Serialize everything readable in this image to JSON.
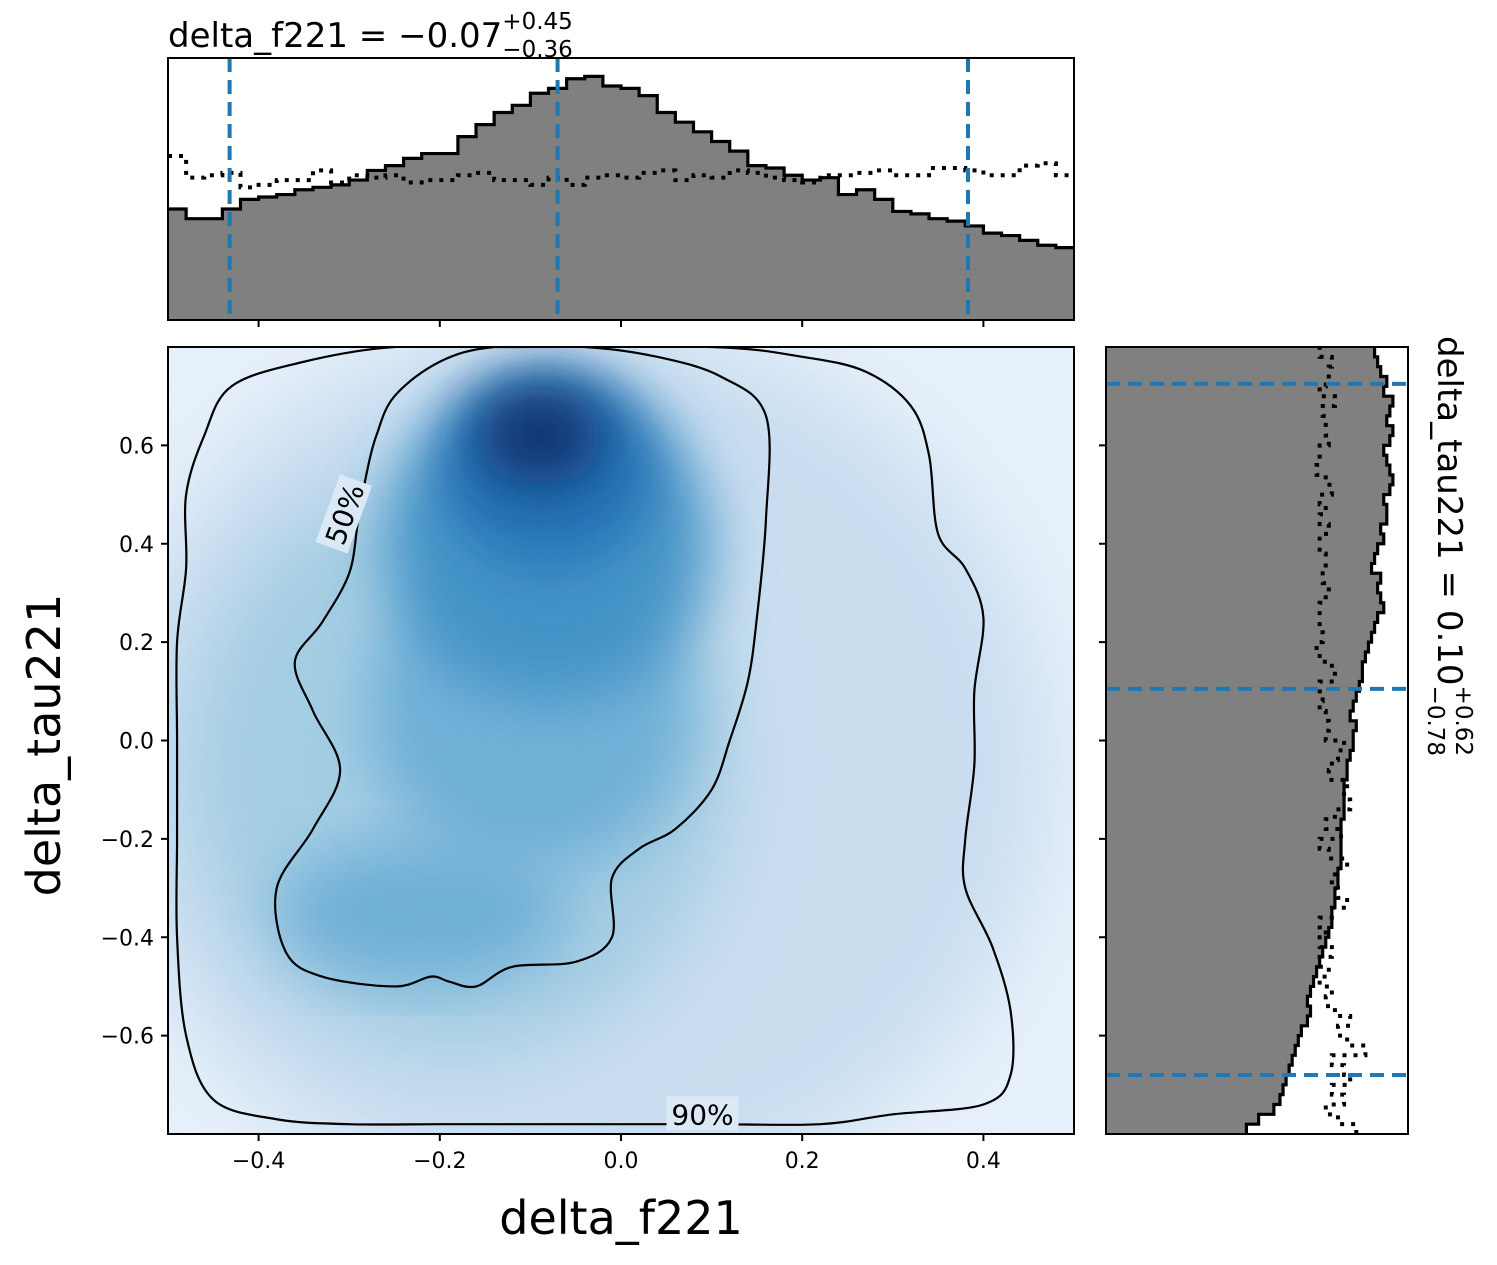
{
  "chart_data": [
    {
      "type": "heatmap",
      "panel": "joint",
      "xlabel": "delta_f221",
      "ylabel": "delta_tau221",
      "xlim": [
        -0.5,
        0.5
      ],
      "ylim": [
        -0.8,
        0.8
      ],
      "x_ticks": [
        -0.4,
        -0.2,
        0.0,
        0.2,
        0.4
      ],
      "x_tick_labels": [
        "−0.4",
        "−0.2",
        "0.0",
        "0.2",
        "0.4"
      ],
      "y_ticks": [
        -0.6,
        -0.4,
        -0.2,
        0.0,
        0.2,
        0.4,
        0.6
      ],
      "y_tick_labels": [
        "−0.6",
        "−0.4",
        "−0.2",
        "0.0",
        "0.2",
        "0.4",
        "0.6"
      ],
      "colormap": "Blues",
      "density_peak": {
        "x": -0.09,
        "y": 0.6
      },
      "contours": [
        {
          "label": "50%",
          "points": [
            [
              -0.14,
              0.8
            ],
            [
              -0.04,
              0.8
            ],
            [
              0.04,
              0.78
            ],
            [
              0.11,
              0.74
            ],
            [
              0.16,
              0.66
            ],
            [
              0.16,
              0.45
            ],
            [
              0.15,
              0.25
            ],
            [
              0.14,
              0.12
            ],
            [
              0.12,
              0.0
            ],
            [
              0.1,
              -0.1
            ],
            [
              0.06,
              -0.18
            ],
            [
              0.02,
              -0.22
            ],
            [
              -0.01,
              -0.28
            ],
            [
              -0.01,
              -0.4
            ],
            [
              -0.05,
              -0.45
            ],
            [
              -0.12,
              -0.46
            ],
            [
              -0.16,
              -0.5
            ],
            [
              -0.19,
              -0.49
            ],
            [
              -0.21,
              -0.48
            ],
            [
              -0.25,
              -0.5
            ],
            [
              -0.33,
              -0.48
            ],
            [
              -0.37,
              -0.43
            ],
            [
              -0.38,
              -0.3
            ],
            [
              -0.34,
              -0.18
            ],
            [
              -0.31,
              -0.06
            ],
            [
              -0.34,
              0.06
            ],
            [
              -0.36,
              0.16
            ],
            [
              -0.33,
              0.24
            ],
            [
              -0.3,
              0.34
            ],
            [
              -0.29,
              0.45
            ],
            [
              -0.28,
              0.55
            ],
            [
              -0.27,
              0.62
            ],
            [
              -0.25,
              0.7
            ],
            [
              -0.2,
              0.77
            ]
          ]
        },
        {
          "label": "90%",
          "points": [
            [
              -0.12,
              0.8
            ],
            [
              0.1,
              0.8
            ],
            [
              0.2,
              0.78
            ],
            [
              0.27,
              0.75
            ],
            [
              0.32,
              0.68
            ],
            [
              0.34,
              0.58
            ],
            [
              0.35,
              0.42
            ],
            [
              0.38,
              0.35
            ],
            [
              0.4,
              0.25
            ],
            [
              0.39,
              0.1
            ],
            [
              0.39,
              -0.05
            ],
            [
              0.38,
              -0.2
            ],
            [
              0.38,
              -0.3
            ],
            [
              0.41,
              -0.42
            ],
            [
              0.43,
              -0.55
            ],
            [
              0.43,
              -0.68
            ],
            [
              0.4,
              -0.74
            ],
            [
              0.3,
              -0.76
            ],
            [
              0.22,
              -0.78
            ],
            [
              0.1,
              -0.78
            ],
            [
              0.0,
              -0.78
            ],
            [
              -0.1,
              -0.78
            ],
            [
              -0.2,
              -0.78
            ],
            [
              -0.3,
              -0.78
            ],
            [
              -0.38,
              -0.77
            ],
            [
              -0.45,
              -0.73
            ],
            [
              -0.48,
              -0.6
            ],
            [
              -0.49,
              -0.4
            ],
            [
              -0.49,
              -0.2
            ],
            [
              -0.49,
              0.0
            ],
            [
              -0.49,
              0.2
            ],
            [
              -0.48,
              0.35
            ],
            [
              -0.48,
              0.5
            ],
            [
              -0.46,
              0.62
            ],
            [
              -0.43,
              0.72
            ],
            [
              -0.35,
              0.77
            ],
            [
              -0.25,
              0.8
            ]
          ]
        }
      ]
    },
    {
      "type": "bar",
      "panel": "top-marginal",
      "title_param": "delta_f221",
      "title_value": "−0.07",
      "title_upper": "+0.45",
      "title_lower": "−0.36",
      "xlim": [
        -0.5,
        0.5
      ],
      "quantile_lines": [
        -0.432,
        -0.07,
        0.383
      ],
      "bin_edges_start": -0.5,
      "bin_width": 0.02,
      "posterior": [
        0.46,
        0.42,
        0.42,
        0.46,
        0.5,
        0.51,
        0.52,
        0.54,
        0.55,
        0.56,
        0.58,
        0.62,
        0.64,
        0.67,
        0.69,
        0.69,
        0.76,
        0.81,
        0.86,
        0.89,
        0.94,
        0.96,
        1.0,
        1.01,
        0.97,
        0.96,
        0.93,
        0.86,
        0.82,
        0.78,
        0.74,
        0.7,
        0.64,
        0.63,
        0.6,
        0.58,
        0.59,
        0.52,
        0.54,
        0.5,
        0.45,
        0.44,
        0.42,
        0.41,
        0.39,
        0.36,
        0.35,
        0.33,
        0.31,
        0.3
      ],
      "prior": [
        0.68,
        0.59,
        0.6,
        0.61,
        0.55,
        0.56,
        0.58,
        0.58,
        0.62,
        0.57,
        0.6,
        0.59,
        0.6,
        0.57,
        0.58,
        0.58,
        0.6,
        0.61,
        0.58,
        0.58,
        0.56,
        0.59,
        0.56,
        0.59,
        0.6,
        0.59,
        0.61,
        0.62,
        0.58,
        0.6,
        0.59,
        0.62,
        0.61,
        0.59,
        0.58,
        0.57,
        0.6,
        0.6,
        0.61,
        0.62,
        0.6,
        0.6,
        0.63,
        0.63,
        0.62,
        0.6,
        0.6,
        0.64,
        0.65,
        0.6
      ]
    },
    {
      "type": "bar",
      "panel": "right-marginal",
      "orientation": "horizontal",
      "title_param": "delta_tau221",
      "title_value": "0.10",
      "title_upper": "+0.62",
      "title_lower": "−0.78",
      "ylim": [
        -0.8,
        0.8
      ],
      "quantile_lines": [
        -0.68,
        0.105,
        0.725
      ],
      "bin_edges_start": -0.8,
      "bin_width": 0.02,
      "posterior": [
        0.46,
        0.5,
        0.55,
        0.57,
        0.58,
        0.59,
        0.6,
        0.61,
        0.62,
        0.63,
        0.64,
        0.66,
        0.67,
        0.66,
        0.67,
        0.68,
        0.69,
        0.7,
        0.71,
        0.72,
        0.73,
        0.74,
        0.74,
        0.75,
        0.75,
        0.76,
        0.76,
        0.77,
        0.77,
        0.77,
        0.77,
        0.77,
        0.78,
        0.78,
        0.78,
        0.78,
        0.79,
        0.79,
        0.8,
        0.81,
        0.81,
        0.82,
        0.8,
        0.81,
        0.82,
        0.83,
        0.84,
        0.84,
        0.85,
        0.86,
        0.87,
        0.88,
        0.89,
        0.91,
        0.9,
        0.89,
        0.9,
        0.87,
        0.88,
        0.89,
        0.91,
        0.9,
        0.92,
        0.92,
        0.91,
        0.93,
        0.94,
        0.93,
        0.92,
        0.91,
        0.93,
        0.94,
        0.92,
        0.93,
        0.94,
        0.91,
        0.92,
        0.9,
        0.89,
        0.88
      ],
      "prior": [
        0.82,
        0.76,
        0.72,
        0.78,
        0.74,
        0.8,
        0.78,
        0.74,
        0.85,
        0.79,
        0.76,
        0.8,
        0.75,
        0.72,
        0.74,
        0.7,
        0.73,
        0.7,
        0.74,
        0.7,
        0.72,
        0.7,
        0.74,
        0.79,
        0.76,
        0.74,
        0.75,
        0.79,
        0.73,
        0.7,
        0.77,
        0.72,
        0.75,
        0.8,
        0.78,
        0.79,
        0.73,
        0.74,
        0.76,
        0.78,
        0.72,
        0.73,
        0.72,
        0.7,
        0.71,
        0.7,
        0.75,
        0.74,
        0.7,
        0.69,
        0.71,
        0.7,
        0.7,
        0.7,
        0.72,
        0.73,
        0.71,
        0.72,
        0.72,
        0.7,
        0.7,
        0.73,
        0.7,
        0.72,
        0.7,
        0.74,
        0.72,
        0.69,
        0.7,
        0.7,
        0.73,
        0.72,
        0.72,
        0.71,
        0.75,
        0.7,
        0.72,
        0.73,
        0.74,
        0.7
      ]
    }
  ]
}
